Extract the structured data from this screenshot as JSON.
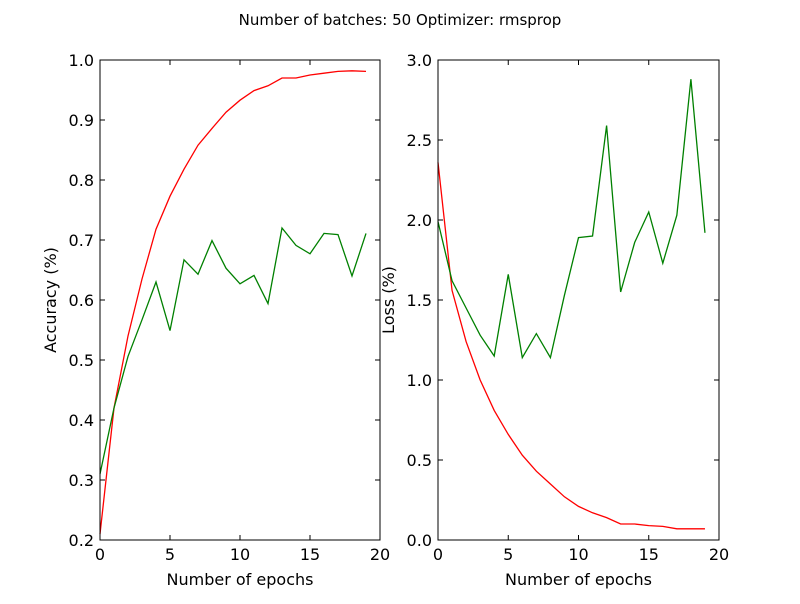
{
  "figure": {
    "suptitle": "Number of batches: 50 Optimizer: rmsprop"
  },
  "chart_data": [
    {
      "type": "line",
      "xlabel": "Number of epochs",
      "ylabel": "Accuracy (%)",
      "xlim": [
        0,
        20
      ],
      "ylim": [
        0.2,
        1.0
      ],
      "xticks": [
        "0",
        "5",
        "10",
        "15",
        "20"
      ],
      "yticks": [
        "0.2",
        "0.3",
        "0.4",
        "0.5",
        "0.6",
        "0.7",
        "0.8",
        "0.9",
        "1.0"
      ],
      "grid": false,
      "x": [
        0,
        1,
        2,
        3,
        4,
        5,
        6,
        7,
        8,
        9,
        10,
        11,
        12,
        13,
        14,
        15,
        16,
        17,
        18,
        19
      ],
      "series": [
        {
          "color": "#ff0000",
          "values": [
            0.21,
            0.42,
            0.54,
            0.635,
            0.718,
            0.773,
            0.818,
            0.858,
            0.886,
            0.913,
            0.933,
            0.949,
            0.957,
            0.97,
            0.97,
            0.975,
            0.978,
            0.981,
            0.982,
            0.981
          ]
        },
        {
          "color": "#008000",
          "values": [
            0.31,
            0.42,
            0.506,
            0.567,
            0.63,
            0.549,
            0.667,
            0.643,
            0.699,
            0.653,
            0.627,
            0.641,
            0.594,
            0.72,
            0.691,
            0.677,
            0.711,
            0.709,
            0.64,
            0.711
          ]
        }
      ]
    },
    {
      "type": "line",
      "xlabel": "Number of epochs",
      "ylabel": "Loss (%)",
      "xlim": [
        0,
        20
      ],
      "ylim": [
        0.0,
        3.0
      ],
      "xticks": [
        "0",
        "5",
        "10",
        "15",
        "20"
      ],
      "yticks": [
        "0.0",
        "0.5",
        "1.0",
        "1.5",
        "2.0",
        "2.5",
        "3.0"
      ],
      "grid": false,
      "x": [
        0,
        1,
        2,
        3,
        4,
        5,
        6,
        7,
        8,
        9,
        10,
        11,
        12,
        13,
        14,
        15,
        16,
        17,
        18,
        19
      ],
      "series": [
        {
          "color": "#ff0000",
          "values": [
            2.36,
            1.56,
            1.24,
            1.0,
            0.81,
            0.66,
            0.53,
            0.43,
            0.35,
            0.27,
            0.21,
            0.17,
            0.14,
            0.1,
            0.1,
            0.09,
            0.085,
            0.07,
            0.07,
            0.07
          ]
        },
        {
          "color": "#008000",
          "values": [
            1.99,
            1.62,
            1.45,
            1.28,
            1.15,
            1.66,
            1.14,
            1.29,
            1.14,
            1.53,
            1.89,
            1.9,
            2.59,
            1.55,
            1.86,
            2.05,
            1.73,
            2.03,
            2.88,
            1.92
          ]
        }
      ]
    }
  ]
}
